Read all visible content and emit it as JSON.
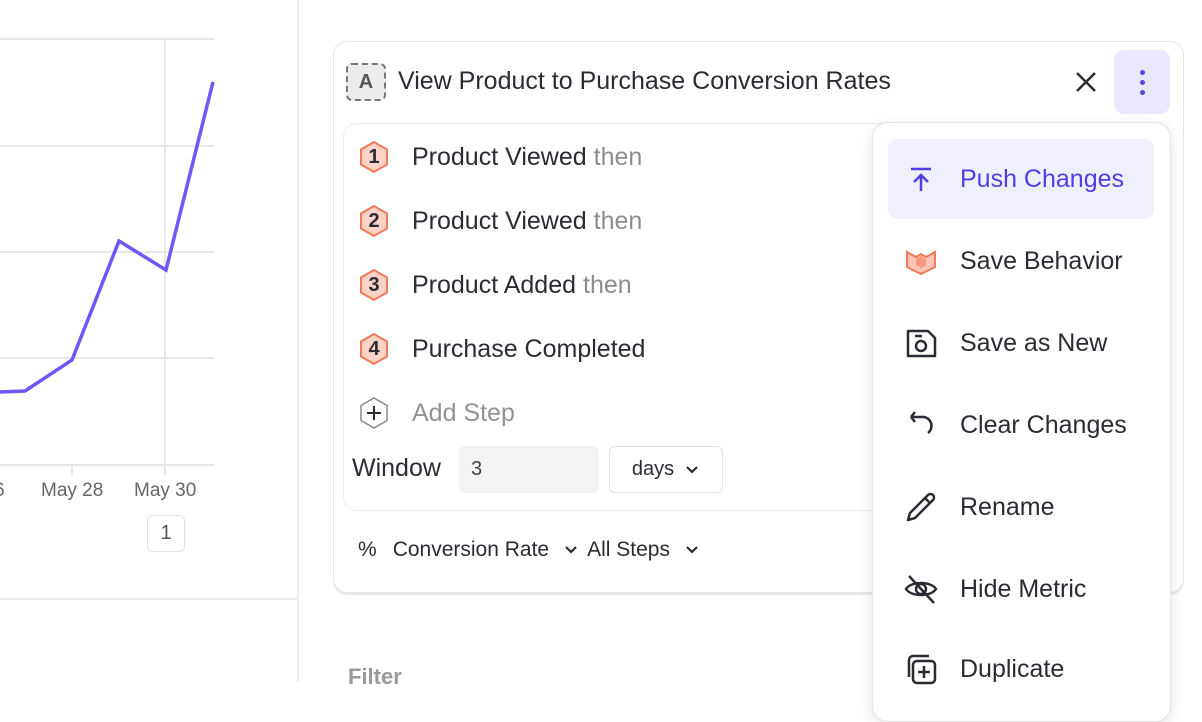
{
  "chart": {
    "x_ticks": [
      "6",
      "May 28",
      "May 30"
    ],
    "annotation_badge": "1",
    "line_color": "#6e57f7"
  },
  "metric_card": {
    "letter": "A",
    "title": "View Product to Purchase Conversion Rates",
    "steps": [
      {
        "number": "1",
        "event": "Product Viewed",
        "suffix": "then"
      },
      {
        "number": "2",
        "event": "Product Viewed",
        "suffix": "then"
      },
      {
        "number": "3",
        "event": "Product Added",
        "suffix": "then"
      },
      {
        "number": "4",
        "event": "Purchase Completed",
        "suffix": ""
      }
    ],
    "add_step": "Add Step",
    "window": {
      "label": "Window",
      "value": "3",
      "unit": "days"
    },
    "measure": {
      "symbol": "%",
      "label": "Conversion Rate",
      "scope": "All Steps"
    }
  },
  "filter_label": "Filter",
  "menu": {
    "items": [
      {
        "label": "Push Changes",
        "icon": "push-icon",
        "active": true
      },
      {
        "label": "Save Behavior",
        "icon": "behavior-icon"
      },
      {
        "label": "Save as New",
        "icon": "save-icon"
      },
      {
        "label": "Clear Changes",
        "icon": "undo-icon"
      },
      {
        "label": "Rename",
        "icon": "pencil-icon"
      },
      {
        "label": "Hide Metric",
        "icon": "eye-off-icon"
      },
      {
        "label": "Duplicate",
        "icon": "duplicate-icon"
      }
    ]
  },
  "colors": {
    "accent": "#5a48e8",
    "step_hex_fill": "#fcd3c6",
    "step_hex_stroke": "#f07a5a"
  }
}
